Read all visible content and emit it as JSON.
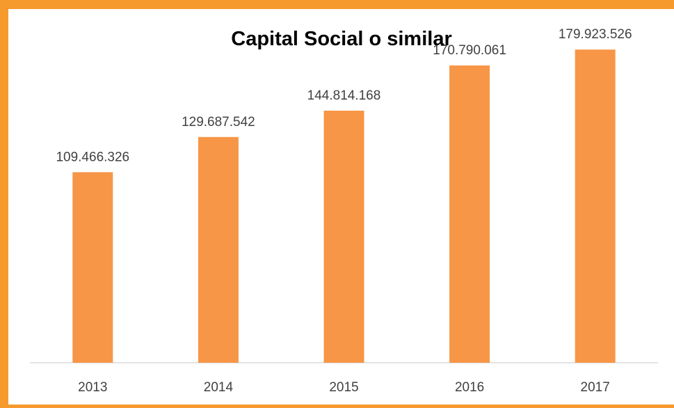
{
  "colors": {
    "frame": "#f79a2e",
    "bar": "#f79646",
    "axis": "#d9d9d9",
    "text": "#404040"
  },
  "chart_data": {
    "type": "bar",
    "title": "Capital Social o similar",
    "xlabel": "",
    "ylabel": "",
    "categories": [
      "2013",
      "2014",
      "2015",
      "2016",
      "2017"
    ],
    "values": [
      109466326,
      129687542,
      144814168,
      170790061,
      179923526
    ],
    "data_labels": [
      "109.466.326",
      "129.687.542",
      "144.814.168",
      "170.790.061",
      "179.923.526"
    ],
    "ylim": [
      0,
      200000000
    ],
    "grid": false,
    "legend": "none",
    "value_axis_visible": false
  }
}
